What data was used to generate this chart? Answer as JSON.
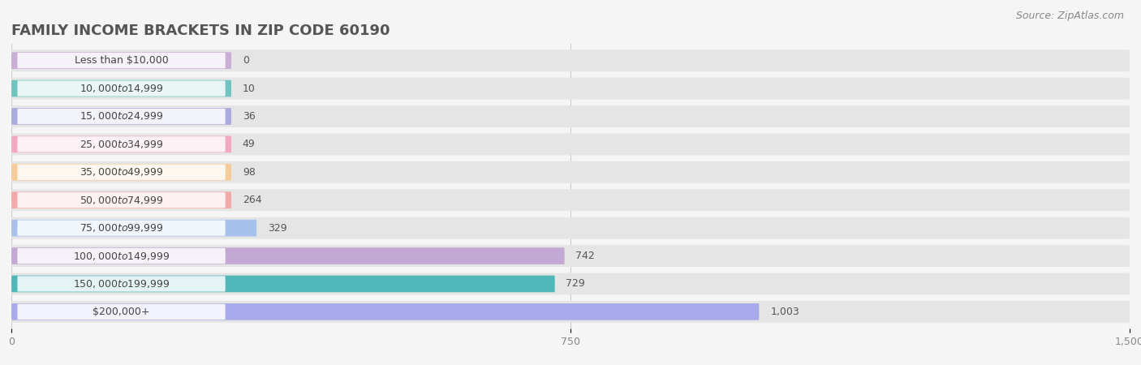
{
  "title": "FAMILY INCOME BRACKETS IN ZIP CODE 60190",
  "source": "Source: ZipAtlas.com",
  "categories": [
    "Less than $10,000",
    "$10,000 to $14,999",
    "$15,000 to $24,999",
    "$25,000 to $34,999",
    "$35,000 to $49,999",
    "$50,000 to $74,999",
    "$75,000 to $99,999",
    "$100,000 to $149,999",
    "$150,000 to $199,999",
    "$200,000+"
  ],
  "values": [
    0,
    10,
    36,
    49,
    98,
    264,
    329,
    742,
    729,
    1003
  ],
  "bar_colors": [
    "#cbaed8",
    "#70c4c0",
    "#aaaae0",
    "#f2a8c0",
    "#f5cc9a",
    "#f2aaa8",
    "#a8c0ec",
    "#c4a8d4",
    "#50b8b8",
    "#a8aaec"
  ],
  "bg_color": "#f5f5f5",
  "bar_bg_color": "#e5e5e5",
  "label_bg_color": "#ffffff",
  "xlim": [
    0,
    1500
  ],
  "xticks": [
    0,
    750,
    1500
  ],
  "title_fontsize": 13,
  "label_fontsize": 9,
  "value_fontsize": 9,
  "source_fontsize": 9
}
